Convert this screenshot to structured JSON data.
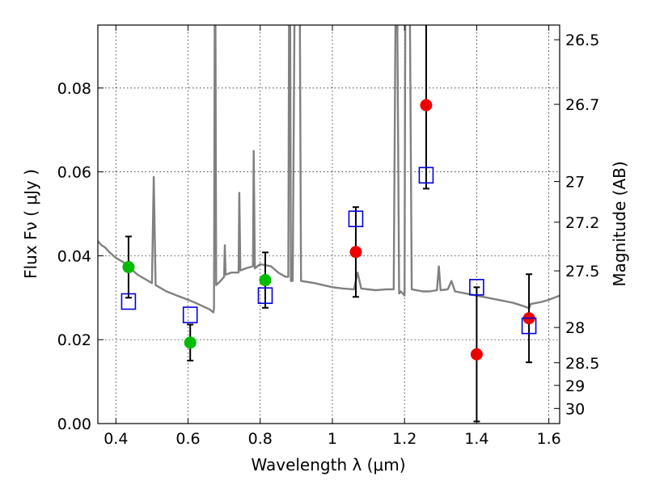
{
  "chart_data": {
    "type": "scatter",
    "xlabel": "Wavelength  λ (μm)",
    "ylabel": "Flux  Fν  ( μJy )",
    "y2label": "Magnitude (AB)",
    "xlim": [
      0.35,
      1.63
    ],
    "ylim": [
      0.0,
      0.095
    ],
    "grid": true,
    "x_ticks": [
      0.4,
      0.6,
      0.8,
      1.0,
      1.2,
      1.4,
      1.6
    ],
    "x_tick_labels": [
      "0.4",
      "0.6",
      "0.8",
      "1",
      "1.2",
      "1.4",
      "1.6"
    ],
    "y_ticks": [
      0.0,
      0.02,
      0.04,
      0.06,
      0.08
    ],
    "y_tick_labels": [
      "0.00",
      "0.02",
      "0.04",
      "0.06",
      "0.08"
    ],
    "magnitude_ticks": [
      {
        "label": "26.5",
        "flux": 0.0915
      },
      {
        "label": "26.7",
        "flux": 0.0761
      },
      {
        "label": "27",
        "flux": 0.0577
      },
      {
        "label": "27.2",
        "flux": 0.048
      },
      {
        "label": "27.5",
        "flux": 0.0364
      },
      {
        "label": "28",
        "flux": 0.0229
      },
      {
        "label": "28.5",
        "flux": 0.0145
      },
      {
        "label": "29",
        "flux": 0.0091
      },
      {
        "label": "30",
        "flux": 0.0036
      }
    ],
    "series": [
      {
        "kind": "observed-green",
        "color": "#00bb00",
        "points": [
          {
            "x": 0.435,
            "y": 0.0373,
            "err_lo": 0.0073,
            "err_hi": 0.0073
          },
          {
            "x": 0.606,
            "y": 0.0193,
            "err_lo": 0.0043,
            "err_hi": 0.0043
          },
          {
            "x": 0.814,
            "y": 0.0342,
            "err_lo": 0.0066,
            "err_hi": 0.0066
          }
        ]
      },
      {
        "kind": "observed-red",
        "color": "#ee0000",
        "points": [
          {
            "x": 1.065,
            "y": 0.0409,
            "err_lo": 0.0107,
            "err_hi": 0.0107
          },
          {
            "x": 1.26,
            "y": 0.0759,
            "err_lo": 0.0199,
            "err_hi": 0.0199
          },
          {
            "x": 1.4,
            "y": 0.0165,
            "err_lo": 0.016,
            "err_hi": 0.016
          },
          {
            "x": 1.545,
            "y": 0.0251,
            "err_lo": 0.0105,
            "err_hi": 0.0105
          }
        ]
      },
      {
        "kind": "model-squares",
        "color": "#0000dd",
        "points": [
          {
            "x": 0.435,
            "y": 0.0291
          },
          {
            "x": 0.606,
            "y": 0.0259
          },
          {
            "x": 0.814,
            "y": 0.0305
          },
          {
            "x": 1.065,
            "y": 0.0488
          },
          {
            "x": 1.26,
            "y": 0.0592
          },
          {
            "x": 1.4,
            "y": 0.0325
          },
          {
            "x": 1.545,
            "y": 0.0233
          }
        ]
      }
    ],
    "model_spectrum": {
      "color": "#808080",
      "points": [
        [
          0.35,
          0.0435
        ],
        [
          0.36,
          0.0425
        ],
        [
          0.37,
          0.042
        ],
        [
          0.38,
          0.041
        ],
        [
          0.4,
          0.0395
        ],
        [
          0.42,
          0.0385
        ],
        [
          0.44,
          0.037
        ],
        [
          0.46,
          0.0355
        ],
        [
          0.48,
          0.0345
        ],
        [
          0.5,
          0.0335
        ],
        [
          0.505,
          0.0588
        ],
        [
          0.51,
          0.033
        ],
        [
          0.54,
          0.0315
        ],
        [
          0.57,
          0.0305
        ],
        [
          0.6,
          0.0295
        ],
        [
          0.62,
          0.0288
        ],
        [
          0.64,
          0.028
        ],
        [
          0.66,
          0.0272
        ],
        [
          0.67,
          0.0265
        ],
        [
          0.672,
          0.0275
        ],
        [
          0.674,
          0.096
        ],
        [
          0.676,
          0.096
        ],
        [
          0.678,
          0.033
        ],
        [
          0.69,
          0.034
        ],
        [
          0.7,
          0.035
        ],
        [
          0.702,
          0.0425
        ],
        [
          0.704,
          0.0355
        ],
        [
          0.72,
          0.036
        ],
        [
          0.74,
          0.036
        ],
        [
          0.742,
          0.055
        ],
        [
          0.745,
          0.0365
        ],
        [
          0.76,
          0.037
        ],
        [
          0.78,
          0.0375
        ],
        [
          0.782,
          0.065
        ],
        [
          0.785,
          0.037
        ],
        [
          0.8,
          0.038
        ],
        [
          0.83,
          0.0375
        ],
        [
          0.85,
          0.036
        ],
        [
          0.87,
          0.035
        ],
        [
          0.878,
          0.035
        ],
        [
          0.88,
          0.096
        ],
        [
          0.883,
          0.096
        ],
        [
          0.885,
          0.034
        ],
        [
          0.89,
          0.034
        ],
        [
          0.895,
          0.096
        ],
        [
          0.905,
          0.096
        ],
        [
          0.91,
          0.096
        ],
        [
          0.913,
          0.034
        ],
        [
          0.95,
          0.0335
        ],
        [
          1.0,
          0.0325
        ],
        [
          1.03,
          0.0322
        ],
        [
          1.06,
          0.032
        ],
        [
          1.07,
          0.036
        ],
        [
          1.08,
          0.0322
        ],
        [
          1.12,
          0.0318
        ],
        [
          1.15,
          0.032
        ],
        [
          1.17,
          0.032
        ],
        [
          1.175,
          0.096
        ],
        [
          1.18,
          0.096
        ],
        [
          1.185,
          0.031
        ],
        [
          1.19,
          0.0315
        ],
        [
          1.2,
          0.0305
        ],
        [
          1.202,
          0.096
        ],
        [
          1.208,
          0.096
        ],
        [
          1.21,
          0.096
        ],
        [
          1.215,
          0.096
        ],
        [
          1.22,
          0.032
        ],
        [
          1.25,
          0.0315
        ],
        [
          1.27,
          0.0315
        ],
        [
          1.29,
          0.0318
        ],
        [
          1.295,
          0.0375
        ],
        [
          1.3,
          0.0318
        ],
        [
          1.32,
          0.032
        ],
        [
          1.33,
          0.034
        ],
        [
          1.34,
          0.0315
        ],
        [
          1.37,
          0.031
        ],
        [
          1.4,
          0.0305
        ],
        [
          1.43,
          0.03
        ],
        [
          1.46,
          0.0295
        ],
        [
          1.5,
          0.0288
        ],
        [
          1.53,
          0.028
        ],
        [
          1.545,
          0.0275
        ],
        [
          1.55,
          0.0285
        ],
        [
          1.58,
          0.029
        ],
        [
          1.6,
          0.0295
        ],
        [
          1.63,
          0.0305
        ]
      ]
    }
  }
}
